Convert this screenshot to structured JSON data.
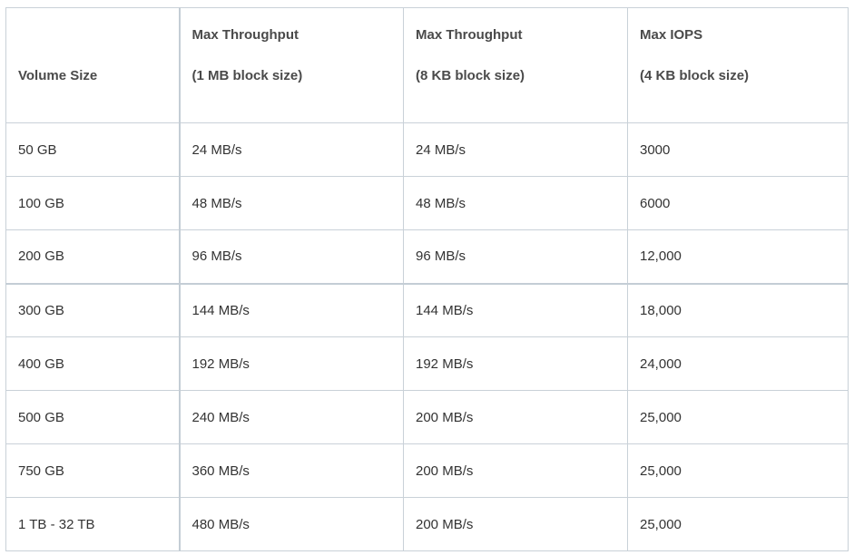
{
  "table": {
    "headers": [
      {
        "line1": "",
        "line2": "Volume Size"
      },
      {
        "line1": "Max Throughput",
        "line2": "(1 MB block size)"
      },
      {
        "line1": "Max Throughput",
        "line2": "(8 KB block size)"
      },
      {
        "line1": "Max IOPS",
        "line2": "(4 KB block size)"
      }
    ],
    "rows": [
      [
        "50 GB",
        "24 MB/s",
        "24 MB/s",
        "3000"
      ],
      [
        "100 GB",
        "48 MB/s",
        "48 MB/s",
        "6000"
      ],
      [
        "200 GB",
        "96 MB/s",
        "96 MB/s",
        "12,000"
      ],
      [
        "300 GB",
        "144 MB/s",
        "144 MB/s",
        "18,000"
      ],
      [
        "400 GB",
        "192 MB/s",
        "192 MB/s",
        "24,000"
      ],
      [
        "500 GB",
        "240 MB/s",
        "200 MB/s",
        "25,000"
      ],
      [
        "750 GB",
        "360 MB/s",
        "200 MB/s",
        "25,000"
      ],
      [
        "1 TB - 32 TB",
        "480 MB/s",
        "200 MB/s",
        "25,000"
      ]
    ]
  },
  "colors": {
    "border": "#c9d1d8",
    "text": "#333333",
    "header_text": "#4a4a4a",
    "background": "#ffffff"
  }
}
